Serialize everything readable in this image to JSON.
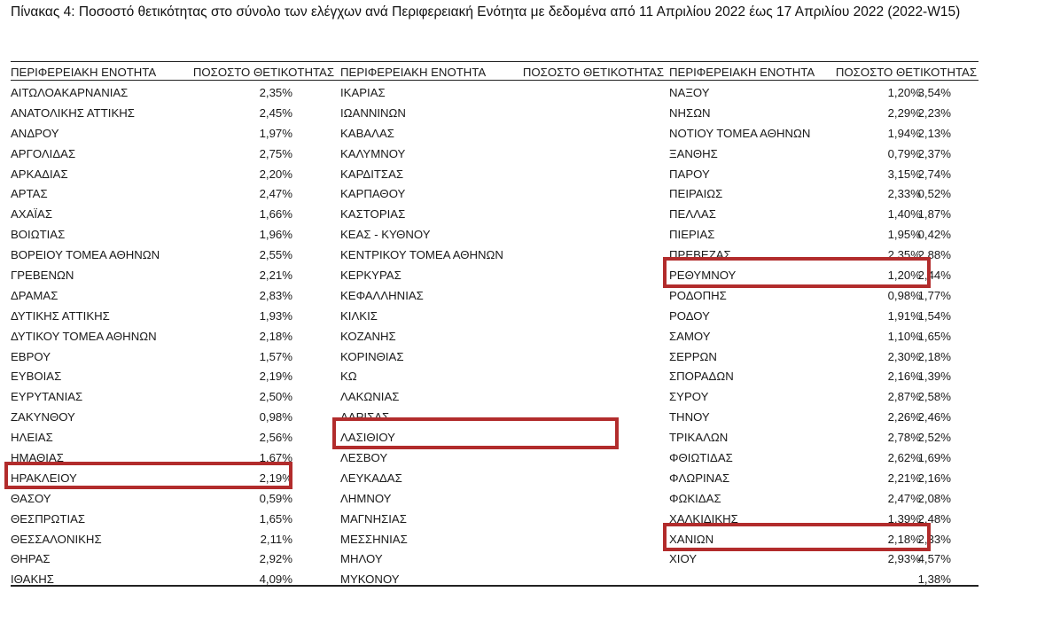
{
  "caption": "Πίνακας 4: Ποσοστό θετικότητας στο σύνολο των ελέγχων ανά Περιφερειακή Ενότητα με δεδομένα από 11 Απριλίου 2022 έως 17 Απριλίου 2022 (2022-W15)",
  "headers": {
    "region": "ΠΕΡΙΦΕΡΕΙΑΚΗ ΕΝΟΤΗΤΑ",
    "positivity": "ΠΟΣΟΣΤΟ ΘΕΤΙΚΟΤΗΤΑΣ"
  },
  "columns": [
    [
      {
        "name": "ΑΙΤΩΛΟΑΚΑΡΝΑΝΙΑΣ",
        "value": "2,35%"
      },
      {
        "name": "ΑΝΑΤΟΛΙΚΗΣ ΑΤΤΙΚΗΣ",
        "value": "2,45%"
      },
      {
        "name": "ΑΝΔΡΟΥ",
        "value": "1,97%"
      },
      {
        "name": "ΑΡΓΟΛΙΔΑΣ",
        "value": "2,75%"
      },
      {
        "name": "ΑΡΚΑΔΙΑΣ",
        "value": "2,20%"
      },
      {
        "name": "ΑΡΤΑΣ",
        "value": "2,47%"
      },
      {
        "name": "ΑΧΑΪΑΣ",
        "value": "1,66%"
      },
      {
        "name": "ΒΟΙΩΤΙΑΣ",
        "value": "1,96%"
      },
      {
        "name": "ΒΟΡΕΙΟΥ ΤΟΜΕΑ ΑΘΗΝΩΝ",
        "value": "2,55%"
      },
      {
        "name": "ΓΡΕΒΕΝΩΝ",
        "value": "2,21%"
      },
      {
        "name": "ΔΡΑΜΑΣ",
        "value": "2,83%"
      },
      {
        "name": "ΔΥΤΙΚΗΣ ΑΤΤΙΚΗΣ",
        "value": "1,93%"
      },
      {
        "name": "ΔΥΤΙΚΟΥ ΤΟΜΕΑ ΑΘΗΝΩΝ",
        "value": "2,18%"
      },
      {
        "name": "ΕΒΡΟΥ",
        "value": "1,57%"
      },
      {
        "name": "ΕΥΒΟΙΑΣ",
        "value": "2,19%"
      },
      {
        "name": "ΕΥΡΥΤΑΝΙΑΣ",
        "value": "2,50%"
      },
      {
        "name": "ΖΑΚΥΝΘΟΥ",
        "value": "0,98%"
      },
      {
        "name": "ΗΛΕΙΑΣ",
        "value": "2,56%"
      },
      {
        "name": "ΗΜΑΘΙΑΣ",
        "value": "1,67%"
      },
      {
        "name": "ΗΡΑΚΛΕΙΟΥ",
        "value": "2,19%"
      },
      {
        "name": "ΘΑΣΟΥ",
        "value": "0,59%"
      },
      {
        "name": "ΘΕΣΠΡΩΤΙΑΣ",
        "value": "1,65%"
      },
      {
        "name": "ΘΕΣΣΑΛΟΝΙΚΗΣ",
        "value": "2,11%"
      },
      {
        "name": "ΘΗΡΑΣ",
        "value": "2,92%"
      },
      {
        "name": "ΙΘΑΚΗΣ",
        "value": "4,09%"
      }
    ],
    [
      {
        "name": "ΙΚΑΡΙΑΣ",
        "value": "3,54%"
      },
      {
        "name": "ΙΩΑΝΝΙΝΩΝ",
        "value": "2,23%"
      },
      {
        "name": "ΚΑΒΑΛΑΣ",
        "value": "2,13%"
      },
      {
        "name": "ΚΑΛΥΜΝΟΥ",
        "value": "2,37%"
      },
      {
        "name": "ΚΑΡΔΙΤΣΑΣ",
        "value": "2,74%"
      },
      {
        "name": "ΚΑΡΠΑΘΟΥ",
        "value": "0,52%"
      },
      {
        "name": "ΚΑΣΤΟΡΙΑΣ",
        "value": "1,87%"
      },
      {
        "name": "ΚΕΑΣ - ΚΥΘΝΟΥ",
        "value": "0,42%"
      },
      {
        "name": "ΚΕΝΤΡΙΚΟΥ ΤΟΜΕΑ ΑΘΗΝΩΝ",
        "value": "2,88%"
      },
      {
        "name": "ΚΕΡΚΥΡΑΣ",
        "value": "2,44%"
      },
      {
        "name": "ΚΕΦΑΛΛΗΝΙΑΣ",
        "value": "1,77%"
      },
      {
        "name": "ΚΙΛΚΙΣ",
        "value": "1,54%"
      },
      {
        "name": "ΚΟΖΑΝΗΣ",
        "value": "1,65%"
      },
      {
        "name": "ΚΟΡΙΝΘΙΑΣ",
        "value": "2,18%"
      },
      {
        "name": "ΚΩ",
        "value": "1,39%"
      },
      {
        "name": "ΛΑΚΩΝΙΑΣ",
        "value": "2,58%"
      },
      {
        "name": "ΛΑΡΙΣΑΣ",
        "value": "2,46%"
      },
      {
        "name": "ΛΑΣΙΘΙΟΥ",
        "value": "2,52%"
      },
      {
        "name": "ΛΕΣΒΟΥ",
        "value": "1,69%"
      },
      {
        "name": "ΛΕΥΚΑΔΑΣ",
        "value": "2,16%"
      },
      {
        "name": "ΛΗΜΝΟΥ",
        "value": "2,08%"
      },
      {
        "name": "ΜΑΓΝΗΣΙΑΣ",
        "value": "2,48%"
      },
      {
        "name": "ΜΕΣΣΗΝΙΑΣ",
        "value": "2,33%"
      },
      {
        "name": "ΜΗΛΟΥ",
        "value": "4,57%"
      },
      {
        "name": "ΜΥΚΟΝΟΥ",
        "value": "1,38%"
      }
    ],
    [
      {
        "name": "ΝΑΞΟΥ",
        "value": "1,20%"
      },
      {
        "name": "ΝΗΣΩΝ",
        "value": "2,29%"
      },
      {
        "name": "ΝΟΤΙΟΥ ΤΟΜΕΑ ΑΘΗΝΩΝ",
        "value": "1,94%"
      },
      {
        "name": "ΞΑΝΘΗΣ",
        "value": "0,79%"
      },
      {
        "name": "ΠΑΡΟΥ",
        "value": "3,15%"
      },
      {
        "name": "ΠΕΙΡΑΙΩΣ",
        "value": "2,33%"
      },
      {
        "name": "ΠΕΛΛΑΣ",
        "value": "1,40%"
      },
      {
        "name": "ΠΙΕΡΙΑΣ",
        "value": "1,95%"
      },
      {
        "name": "ΠΡΕΒΕΖΑΣ",
        "value": "2,35%"
      },
      {
        "name": "ΡΕΘΥΜΝΟΥ",
        "value": "1,20%"
      },
      {
        "name": "ΡΟΔΟΠΗΣ",
        "value": "0,98%"
      },
      {
        "name": "ΡΟΔΟΥ",
        "value": "1,91%"
      },
      {
        "name": "ΣΑΜΟΥ",
        "value": "1,10%"
      },
      {
        "name": "ΣΕΡΡΩΝ",
        "value": "2,30%"
      },
      {
        "name": "ΣΠΟΡΑΔΩΝ",
        "value": "2,16%"
      },
      {
        "name": "ΣΥΡΟΥ",
        "value": "2,87%"
      },
      {
        "name": "ΤΗΝΟΥ",
        "value": "2,26%"
      },
      {
        "name": "ΤΡΙΚΑΛΩΝ",
        "value": "2,78%"
      },
      {
        "name": "ΦΘΙΩΤΙΔΑΣ",
        "value": "2,62%"
      },
      {
        "name": "ΦΛΩΡΙΝΑΣ",
        "value": "2,21%"
      },
      {
        "name": "ΦΩΚΙΔΑΣ",
        "value": "2,47%"
      },
      {
        "name": "ΧΑΛΚΙΔΙΚΗΣ",
        "value": "1,39%"
      },
      {
        "name": "ΧΑΝΙΩΝ",
        "value": "2,18%"
      },
      {
        "name": "ΧΙΟΥ",
        "value": "2,93%"
      }
    ]
  ],
  "highlight_color": "#b22c2c"
}
